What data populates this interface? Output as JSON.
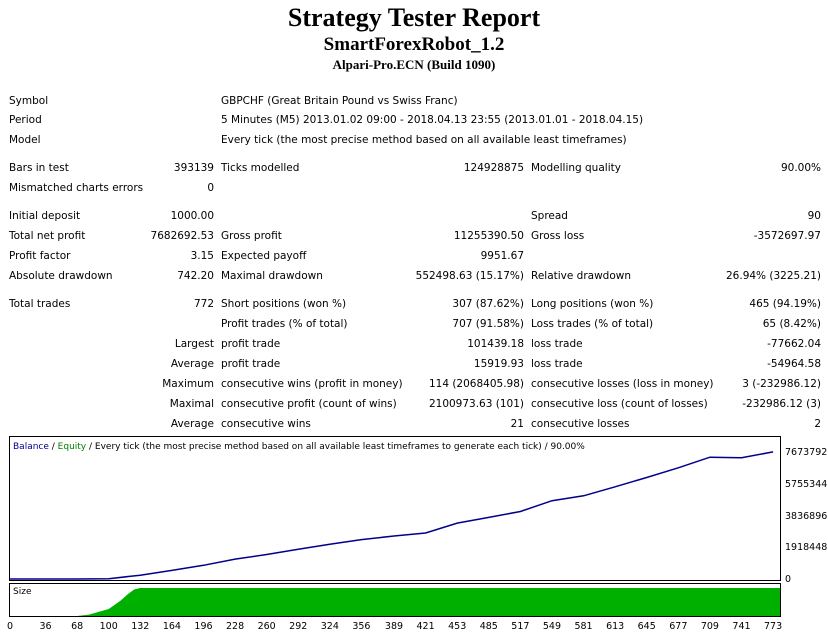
{
  "header": {
    "title": "Strategy Tester Report",
    "expert": "SmartForexRobot_1.2",
    "server": "Alpari-Pro.ECN (Build 1090)"
  },
  "info": {
    "symbol_label": "Symbol",
    "symbol_value": "GBPCHF (Great Britain Pound vs Swiss Franc)",
    "period_label": "Period",
    "period_value": "5 Minutes (M5) 2013.01.02 09:00 - 2018.04.13 23:55 (2013.01.01 - 2018.04.15)",
    "model_label": "Model",
    "model_value": "Every tick (the most precise method based on all available least timeframes)"
  },
  "stats": {
    "bars_in_test": {
      "label": "Bars in test",
      "value": "393139"
    },
    "ticks_modelled": {
      "label": "Ticks modelled",
      "value": "124928875"
    },
    "modelling_quality": {
      "label": "Modelling quality",
      "value": "90.00%"
    },
    "mismatched": {
      "label": "Mismatched charts errors",
      "value": "0"
    },
    "initial_deposit": {
      "label": "Initial deposit",
      "value": "1000.00"
    },
    "spread": {
      "label": "Spread",
      "value": "90"
    },
    "total_net_profit": {
      "label": "Total net profit",
      "value": "7682692.53"
    },
    "gross_profit": {
      "label": "Gross profit",
      "value": "11255390.50"
    },
    "gross_loss": {
      "label": "Gross loss",
      "value": "-3572697.97"
    },
    "profit_factor": {
      "label": "Profit factor",
      "value": "3.15"
    },
    "expected_payoff": {
      "label": "Expected payoff",
      "value": "9951.67"
    },
    "absolute_drawdown": {
      "label": "Absolute drawdown",
      "value": "742.20"
    },
    "maximal_drawdown": {
      "label": "Maximal drawdown",
      "value": "552498.63 (15.17%)"
    },
    "relative_drawdown": {
      "label": "Relative drawdown",
      "value": "26.94% (3225.21)"
    },
    "total_trades": {
      "label": "Total trades",
      "value": "772"
    },
    "short_positions": {
      "label": "Short positions (won %)",
      "value": "307 (87.62%)"
    },
    "long_positions": {
      "label": "Long positions (won %)",
      "value": "465 (94.19%)"
    },
    "profit_trades": {
      "label": "Profit trades (% of total)",
      "value": "707 (91.58%)"
    },
    "loss_trades": {
      "label": "Loss trades (% of total)",
      "value": "65 (8.42%)"
    },
    "largest": {
      "prefix": "Largest",
      "profit_label": "profit trade",
      "profit_value": "101439.18",
      "loss_label": "loss trade",
      "loss_value": "-77662.04"
    },
    "average": {
      "prefix": "Average",
      "profit_label": "profit trade",
      "profit_value": "15919.93",
      "loss_label": "loss trade",
      "loss_value": "-54964.58"
    },
    "maximum": {
      "prefix": "Maximum",
      "profit_label": "consecutive wins (profit in money)",
      "profit_value": "114 (2068405.98)",
      "loss_label": "consecutive losses (loss in money)",
      "loss_value": "3 (-232986.12)"
    },
    "maximal": {
      "prefix": "Maximal",
      "profit_label": "consecutive profit (count of wins)",
      "profit_value": "2100973.63 (101)",
      "loss_label": "consecutive loss (count of losses)",
      "loss_value": "-232986.12 (3)"
    },
    "average_consec": {
      "prefix": "Average",
      "profit_label": "consecutive wins",
      "profit_value": "21",
      "loss_label": "consecutive losses",
      "loss_value": "2"
    }
  },
  "chart_legend": {
    "balance": "Balance",
    "sep1": " / ",
    "equity": "Equity",
    "rest": " / Every tick (the most precise method based on all available least timeframes to generate each tick) / 90.00%"
  },
  "size_label": "Size",
  "colors": {
    "balance": "#00008b",
    "equity": "#008000",
    "size": "#00b000",
    "frame": "#000000"
  },
  "chart_data": {
    "type": "line",
    "x": [
      0,
      36,
      68,
      100,
      132,
      164,
      196,
      228,
      260,
      292,
      324,
      356,
      389,
      421,
      453,
      485,
      517,
      549,
      581,
      613,
      645,
      677,
      709,
      741,
      773
    ],
    "xlim": [
      0,
      780
    ],
    "ylim": [
      0,
      7673792
    ],
    "y_ticks": [
      "7673792",
      "5755344",
      "3836896",
      "1918448",
      "0"
    ],
    "x_ticks": [
      "0",
      "36",
      "68",
      "100",
      "132",
      "164",
      "196",
      "228",
      "260",
      "292",
      "324",
      "356",
      "389",
      "421",
      "453",
      "485",
      "517",
      "549",
      "581",
      "613",
      "645",
      "677",
      "709",
      "741",
      "773"
    ],
    "series": [
      {
        "name": "Balance",
        "values": [
          1000,
          1000,
          2000,
          20000,
          230000,
          520000,
          830000,
          1200000,
          1480000,
          1800000,
          2100000,
          2380000,
          2600000,
          2780000,
          3380000,
          3720000,
          4080000,
          4730000,
          5030000,
          5570000,
          6130000,
          6720000,
          7360000,
          7330000,
          7682692
        ]
      }
    ],
    "size_profile": {
      "x": [
        0,
        68,
        80,
        100,
        112,
        120,
        126,
        132,
        780
      ],
      "level": [
        0,
        0,
        0.05,
        0.25,
        0.55,
        0.8,
        0.95,
        1,
        1
      ]
    }
  }
}
